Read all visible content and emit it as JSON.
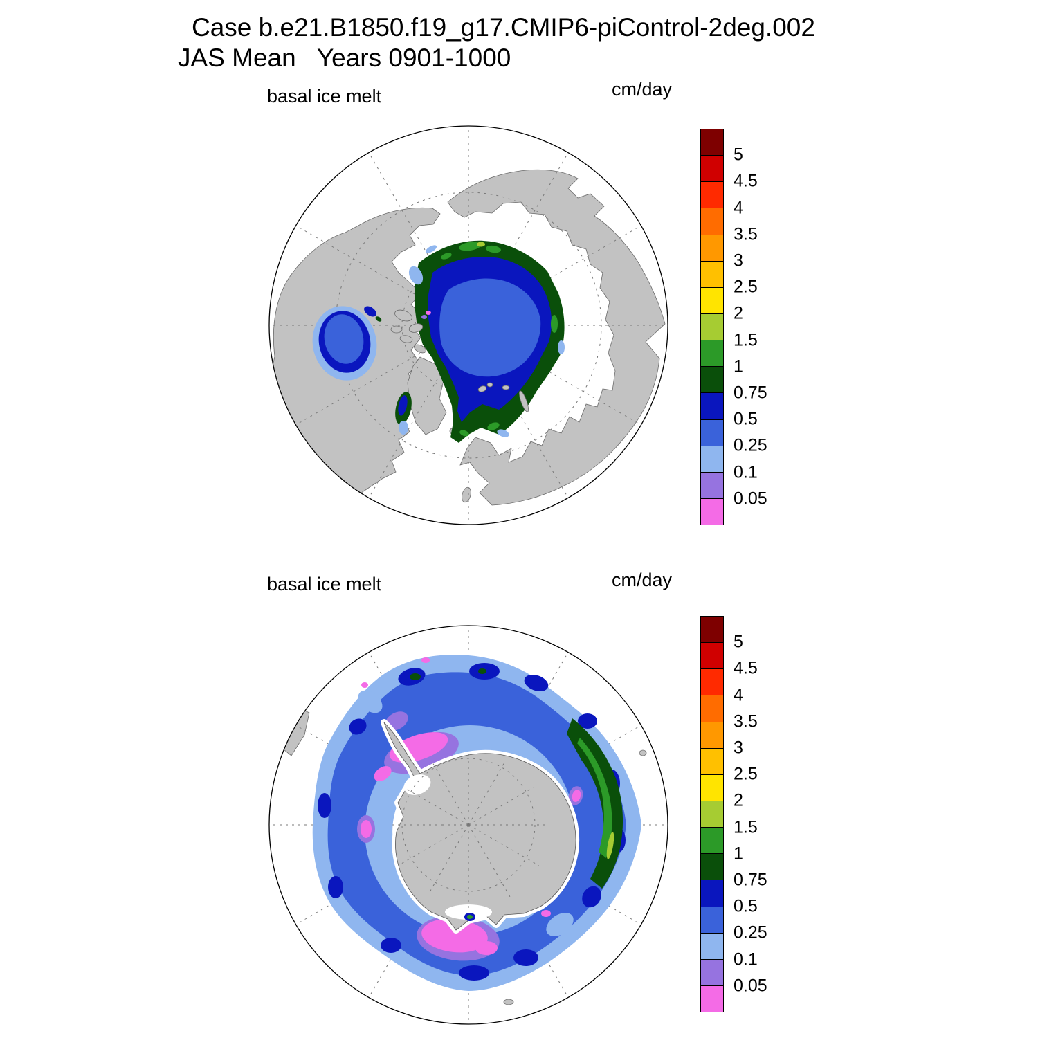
{
  "title": {
    "line1": "Case b.e21.B1850.f19_g17.CMIP6-piControl-2deg.002",
    "line2": "JAS Mean   Years 0901-1000"
  },
  "palette": {
    "land": "#c2c2c2",
    "ocean": "#ffffff",
    "levels_low_to_high": [
      "0.05",
      "0.1",
      "0.25",
      "0.5",
      "0.75",
      "1",
      "1.5",
      "2",
      "2.5",
      "3",
      "3.5",
      "4",
      "4.5",
      "5"
    ],
    "colors_low_to_high": [
      "#f46be6",
      "#9673e0",
      "#8fb6ef",
      "#3a62da",
      "#0a16be",
      "#0a4f0a",
      "#2c9a28",
      "#a6cc32",
      "#ffe400",
      "#ffc000",
      "#ff9800",
      "#ff6c00",
      "#ff2a00",
      "#d00000",
      "#7e0000"
    ]
  },
  "panels": [
    {
      "id": "north",
      "label": "basal ice melt",
      "units": "cm/day",
      "projection": "north polar stereographic"
    },
    {
      "id": "south",
      "label": "basal ice melt",
      "units": "cm/day",
      "projection": "south polar stereographic"
    }
  ],
  "chart_data": [
    {
      "type": "heatmap",
      "title": "basal ice melt",
      "units": "cm/day",
      "projection": "north polar stereographic",
      "contour_levels": [
        0.05,
        0.1,
        0.25,
        0.5,
        0.75,
        1,
        1.5,
        2,
        2.5,
        3,
        3.5,
        4,
        4.5,
        5
      ],
      "level_colors_low_to_high": [
        "#f46be6",
        "#9673e0",
        "#8fb6ef",
        "#3a62da",
        "#0a16be",
        "#0a4f0a",
        "#2c9a28",
        "#a6cc32",
        "#ffe400",
        "#ffc000",
        "#ff9800",
        "#ff6c00",
        "#ff2a00",
        "#d00000",
        "#7e0000"
      ],
      "legend_position": "right",
      "features": [
        {
          "region": "central Arctic Ocean pack interior",
          "value_cm_per_day": "0.25-0.5"
        },
        {
          "region": "ring around pack interior",
          "value_cm_per_day": "0.5-0.75"
        },
        {
          "region": "pack edge along Siberian/Alaskan shelf seas",
          "value_cm_per_day": "0.75-1.5"
        },
        {
          "region": "Barents and Kara seas, east of Greenland",
          "value_cm_per_day": "0.75-1.5"
        },
        {
          "region": "Hudson Bay",
          "value_cm_per_day": "0.25-0.75"
        },
        {
          "region": "Baffin Bay channel",
          "value_cm_per_day": "0.5-1"
        },
        {
          "region": "small spot in Canadian Archipelago",
          "value_cm_per_day": "<0.05"
        }
      ]
    },
    {
      "type": "heatmap",
      "title": "basal ice melt",
      "units": "cm/day",
      "projection": "south polar stereographic",
      "contour_levels": [
        0.05,
        0.1,
        0.25,
        0.5,
        0.75,
        1,
        1.5,
        2,
        2.5,
        3,
        3.5,
        4,
        4.5,
        5
      ],
      "level_colors_low_to_high": [
        "#f46be6",
        "#9673e0",
        "#8fb6ef",
        "#3a62da",
        "#0a16be",
        "#0a4f0a",
        "#2c9a28",
        "#a6cc32",
        "#ffe400",
        "#ffc000",
        "#ff9800",
        "#ff6c00",
        "#ff2a00",
        "#d00000",
        "#7e0000"
      ],
      "legend_position": "right",
      "features": [
        {
          "region": "outer circumpolar ice-edge ring",
          "value_cm_per_day": "0.25-0.5"
        },
        {
          "region": "local maxima along the ice edge",
          "value_cm_per_day": "0.5-0.75"
        },
        {
          "region": "inner pack near the coast",
          "value_cm_per_day": "0.1-0.25"
        },
        {
          "region": "near-coast patches (Weddell, Ross, Amundsen sectors)",
          "value_cm_per_day": "<0.1"
        },
        {
          "region": "elongated maximum east of the Antarctic Peninsula",
          "value_cm_per_day": "1-2"
        }
      ]
    }
  ]
}
